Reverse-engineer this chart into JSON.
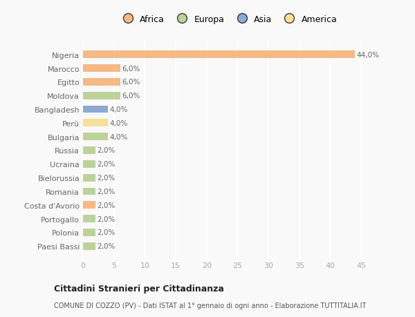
{
  "categories": [
    "Paesi Bassi",
    "Polonia",
    "Portogallo",
    "Costa d'Avorio",
    "Romania",
    "Bielorussia",
    "Ucraina",
    "Russia",
    "Bulgaria",
    "Perù",
    "Bangladesh",
    "Moldova",
    "Egitto",
    "Marocco",
    "Nigeria"
  ],
  "values": [
    2.0,
    2.0,
    2.0,
    2.0,
    2.0,
    2.0,
    2.0,
    2.0,
    4.0,
    4.0,
    4.0,
    6.0,
    6.0,
    6.0,
    44.0
  ],
  "colors": [
    "#a8c57a",
    "#a8c57a",
    "#a8c57a",
    "#f4a460",
    "#a8c57a",
    "#a8c57a",
    "#a8c57a",
    "#a8c57a",
    "#a8c57a",
    "#f5d878",
    "#6b8fc4",
    "#a8c57a",
    "#f4a460",
    "#f4a460",
    "#f4a460"
  ],
  "labels": [
    "2,0%",
    "2,0%",
    "2,0%",
    "2,0%",
    "2,0%",
    "2,0%",
    "2,0%",
    "2,0%",
    "4,0%",
    "4,0%",
    "4,0%",
    "6,0%",
    "6,0%",
    "6,0%",
    "44,0%"
  ],
  "legend": [
    {
      "label": "Africa",
      "color": "#f4a460"
    },
    {
      "label": "Europa",
      "color": "#a8c57a"
    },
    {
      "label": "Asia",
      "color": "#6b8fc4"
    },
    {
      "label": "America",
      "color": "#f5d878"
    }
  ],
  "title1": "Cittadini Stranieri per Cittadinanza",
  "title2": "COMUNE DI COZZO (PV) - Dati ISTAT al 1° gennaio di ogni anno - Elaborazione TUTTITALIA.IT",
  "xlim": [
    0,
    47
  ],
  "xticks": [
    0,
    5,
    10,
    15,
    20,
    25,
    30,
    35,
    40,
    45
  ],
  "bg_color": "#f9f9f9",
  "bar_alpha": 0.75,
  "grid_color": "#ffffff",
  "label_color": "#666666",
  "tick_color": "#aaaaaa"
}
